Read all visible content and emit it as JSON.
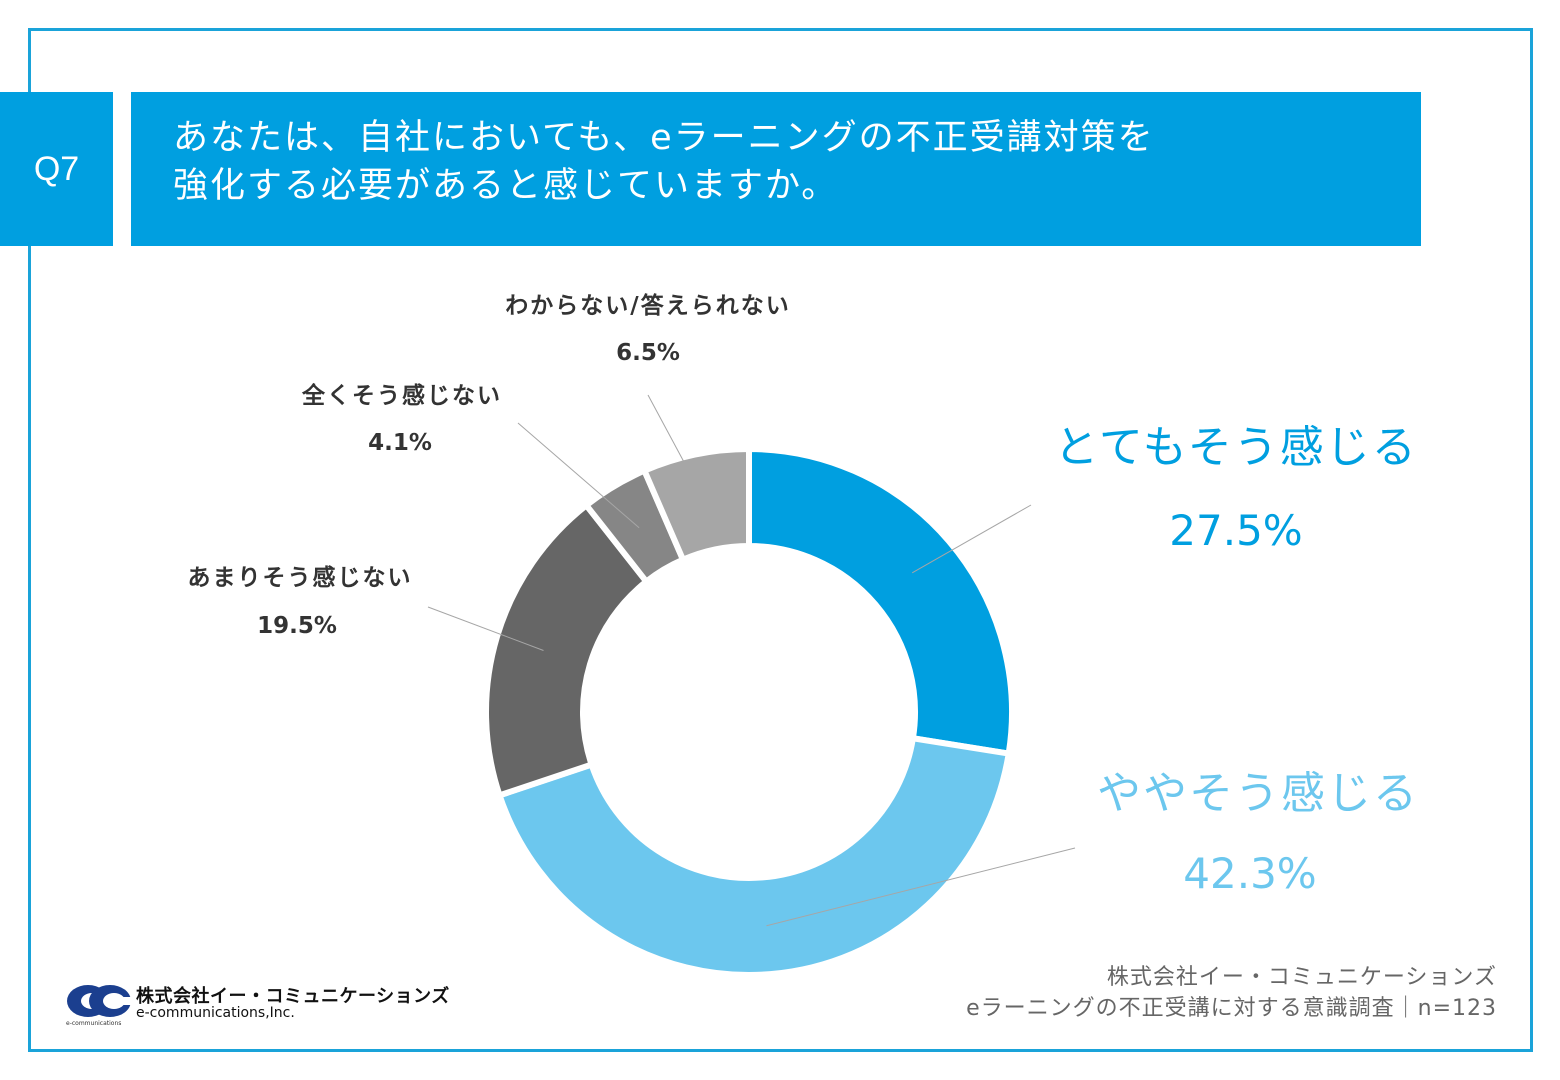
{
  "question": {
    "number": "Q7",
    "line1": "あなたは、自社においても、eラーニングの不正受講対策を",
    "line2": "強化する必要があると感じていますか。"
  },
  "colors": {
    "frame": "#1aa3d9",
    "banner": "#009fe0",
    "strongly_agree": "#009fe0",
    "somewhat_agree": "#6cc7ee",
    "somewhat_disagree": "#666666",
    "strongly_disagree": "#868686",
    "unknown": "#a6a6a6"
  },
  "chart_data": {
    "type": "pie",
    "variant": "donut",
    "unit": "%",
    "categories": [
      "とてもそう感じる",
      "ややそう感じる",
      "あまりそう感じない",
      "全くそう感じない",
      "わからない/答えられない"
    ],
    "values": [
      27.5,
      42.3,
      19.5,
      4.1,
      6.5
    ],
    "value_labels": [
      "27.5%",
      "42.3%",
      "19.5%",
      "4.1%",
      "6.5%"
    ],
    "start": "12 o'clock",
    "direction": "clockwise"
  },
  "source": {
    "company": "株式会社イー・コミュニケーションズ",
    "survey": "eラーニングの不正受講に対する意識調査｜n=123"
  },
  "logo": {
    "name_ja": "株式会社イー・コミュニケーションズ",
    "name_en": "e-communications,Inc.",
    "tiny": "e-communications"
  }
}
